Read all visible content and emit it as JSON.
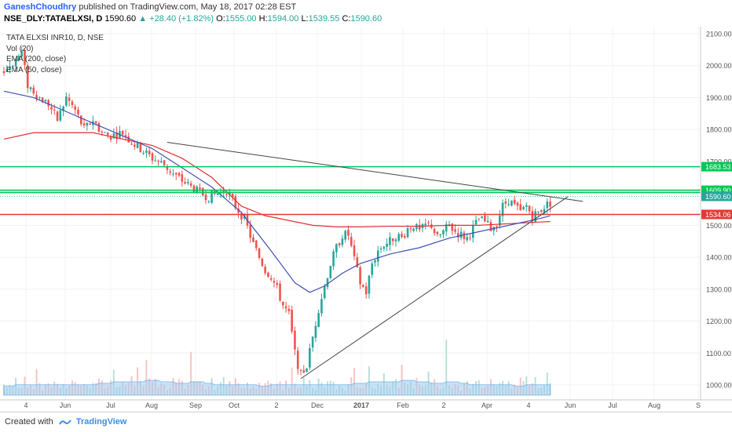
{
  "header": {
    "author": "GaneshChoudhry",
    "published_text": " published on TradingView.com, May 18, 2017 02:28 EST",
    "symbol": "NSE_DLY:TATAELXSI, D",
    "last": "1590.60",
    "change": "+28.40 (+1.82%)",
    "o_label": "O:",
    "o": "1555.00",
    "h_label": "H:",
    "h": "1594.00",
    "l_label": "L:",
    "l": "1539.55",
    "c_label": "C:",
    "c": "1590.60"
  },
  "legend": {
    "title": "TATA ELXSI INR10, D, NSE",
    "vol": "Vol (20)",
    "ema200": "EMA (200, close)",
    "ema50": "EMA (50, close)"
  },
  "footer": {
    "created_with": "Created with",
    "brand": "TradingView"
  },
  "colors": {
    "up": "#26a69a",
    "down": "#ef5350",
    "ema200": "#e03030",
    "ema50": "#3f51b5",
    "green_level": "#00c853",
    "red_level": "#e53935",
    "trend": "#444444",
    "vol_up": "#b9e0da",
    "vol_down": "#f6c6c4",
    "vol_ma": "#9ecbef"
  },
  "chart_data": {
    "type": "candlestick",
    "ylim": [
      980,
      2120
    ],
    "y_ticks": [
      "1000.00",
      "1100.00",
      "1200.00",
      "1300.00",
      "1400.00",
      "1500.00",
      "1600.00",
      "1700.00",
      "1800.00",
      "1900.00",
      "2000.00",
      "2100.00"
    ],
    "x_ticks": [
      "4",
      "Jun",
      "Jul",
      "Aug",
      "Sep",
      "Oct",
      "2",
      "Dec",
      "2017",
      "Feb",
      "2",
      "Apr",
      "4",
      "Jun",
      "Jul",
      "Aug",
      "S"
    ],
    "price_labels": [
      {
        "text": "1683.53",
        "value": 1683.53,
        "color": "#00c853"
      },
      {
        "text": "1609.90",
        "value": 1609.9,
        "color": "#00c853"
      },
      {
        "text": "1590.60",
        "value": 1590.6,
        "color": "#26a69a"
      },
      {
        "text": "1534.06",
        "value": 1534.06,
        "color": "#e53935"
      }
    ],
    "levels": [
      {
        "value": 1683.53,
        "color": "#00c853"
      },
      {
        "value": 1609.9,
        "color": "#00c853"
      },
      {
        "value": 1603,
        "color": "#00c853"
      },
      {
        "value": 1534.06,
        "color": "#e53935"
      }
    ],
    "price_path": [
      [
        0,
        1980
      ],
      [
        3,
        2010
      ],
      [
        6,
        2040
      ],
      [
        8,
        1940
      ],
      [
        12,
        1900
      ],
      [
        15,
        1880
      ],
      [
        18,
        1830
      ],
      [
        21,
        1900
      ],
      [
        24,
        1860
      ],
      [
        27,
        1800
      ],
      [
        30,
        1830
      ],
      [
        33,
        1790
      ],
      [
        36,
        1780
      ],
      [
        40,
        1790
      ],
      [
        43,
        1760
      ],
      [
        46,
        1740
      ],
      [
        50,
        1710
      ],
      [
        54,
        1690
      ],
      [
        57,
        1660
      ],
      [
        60,
        1640
      ],
      [
        63,
        1620
      ],
      [
        66,
        1600
      ],
      [
        69,
        1590
      ],
      [
        72,
        1600
      ],
      [
        75,
        1610
      ],
      [
        78,
        1560
      ],
      [
        81,
        1520
      ],
      [
        84,
        1440
      ],
      [
        86,
        1400
      ],
      [
        88,
        1360
      ],
      [
        90,
        1340
      ],
      [
        92,
        1300
      ],
      [
        94,
        1250
      ],
      [
        96,
        1220
      ],
      [
        98,
        1100
      ],
      [
        100,
        1030
      ],
      [
        102,
        1060
      ],
      [
        104,
        1150
      ],
      [
        106,
        1240
      ],
      [
        108,
        1310
      ],
      [
        110,
        1380
      ],
      [
        112,
        1430
      ],
      [
        114,
        1470
      ],
      [
        116,
        1470
      ],
      [
        118,
        1390
      ],
      [
        120,
        1320
      ],
      [
        122,
        1290
      ],
      [
        124,
        1380
      ],
      [
        126,
        1420
      ],
      [
        128,
        1440
      ],
      [
        130,
        1450
      ],
      [
        132,
        1470
      ],
      [
        134,
        1460
      ],
      [
        136,
        1490
      ],
      [
        138,
        1500
      ],
      [
        140,
        1480
      ],
      [
        142,
        1500
      ],
      [
        144,
        1500
      ],
      [
        146,
        1460
      ],
      [
        148,
        1480
      ],
      [
        150,
        1500
      ],
      [
        152,
        1480
      ],
      [
        154,
        1470
      ],
      [
        156,
        1460
      ],
      [
        158,
        1490
      ],
      [
        160,
        1520
      ],
      [
        162,
        1510
      ],
      [
        164,
        1490
      ],
      [
        166,
        1510
      ],
      [
        168,
        1560
      ],
      [
        170,
        1580
      ],
      [
        172,
        1560
      ],
      [
        174,
        1540
      ],
      [
        176,
        1560
      ],
      [
        178,
        1530
      ],
      [
        180,
        1540
      ],
      [
        182,
        1560
      ],
      [
        184,
        1570
      ]
    ],
    "ema50_path": [
      [
        0,
        1920
      ],
      [
        10,
        1900
      ],
      [
        20,
        1860
      ],
      [
        30,
        1820
      ],
      [
        40,
        1780
      ],
      [
        50,
        1740
      ],
      [
        60,
        1680
      ],
      [
        70,
        1620
      ],
      [
        80,
        1540
      ],
      [
        90,
        1420
      ],
      [
        98,
        1320
      ],
      [
        103,
        1290
      ],
      [
        108,
        1310
      ],
      [
        114,
        1350
      ],
      [
        120,
        1380
      ],
      [
        130,
        1410
      ],
      [
        140,
        1430
      ],
      [
        150,
        1460
      ],
      [
        160,
        1480
      ],
      [
        170,
        1500
      ],
      [
        180,
        1520
      ],
      [
        184,
        1530
      ]
    ],
    "ema200_path": [
      [
        0,
        1770
      ],
      [
        10,
        1790
      ],
      [
        20,
        1790
      ],
      [
        30,
        1790
      ],
      [
        40,
        1770
      ],
      [
        50,
        1750
      ],
      [
        60,
        1710
      ],
      [
        70,
        1650
      ],
      [
        80,
        1560
      ],
      [
        88,
        1530
      ],
      [
        96,
        1515
      ],
      [
        104,
        1500
      ],
      [
        112,
        1495
      ],
      [
        120,
        1495
      ],
      [
        130,
        1497
      ],
      [
        140,
        1497
      ],
      [
        150,
        1500
      ],
      [
        160,
        1500
      ],
      [
        170,
        1505
      ],
      [
        180,
        1510
      ],
      [
        184,
        1512
      ]
    ],
    "trendlines": [
      {
        "from": [
          55,
          1760
        ],
        "to": [
          195,
          1575
        ]
      },
      {
        "from": [
          100,
          1020
        ],
        "to": [
          190,
          1590
        ]
      }
    ],
    "volume": [
      3,
      2,
      4,
      3,
      5,
      2,
      3,
      4,
      2,
      3,
      2,
      6,
      3,
      2,
      3,
      4,
      2,
      5,
      3,
      2,
      4,
      3,
      2,
      3,
      5,
      3,
      2,
      4,
      3,
      2,
      3,
      4,
      6,
      3,
      2,
      3,
      4,
      8,
      3,
      2,
      4,
      3,
      5,
      4,
      3,
      6,
      4,
      3,
      9,
      5,
      3,
      4,
      3,
      4,
      3,
      2,
      3,
      5,
      3,
      4,
      3,
      2,
      3,
      12,
      4,
      3,
      4,
      3,
      2,
      3,
      4,
      2,
      3,
      3,
      4,
      2,
      3,
      2,
      4,
      3,
      2,
      3,
      4,
      2,
      3,
      2
    ],
    "vol_ma": [
      3,
      3,
      3,
      3,
      3.5,
      3.5,
      3.5,
      3.5,
      3.5,
      3.5,
      3.5,
      3.5,
      3.5,
      3.5,
      3.5,
      3.5,
      3.5,
      3.5,
      3.5,
      3.5,
      3.5,
      3.5,
      3.5,
      3.5,
      3.5,
      3.5,
      3.5,
      3.5,
      3.5,
      3.5,
      3.5,
      3.5,
      4,
      4,
      4,
      4,
      4,
      4.5,
      4.5,
      4.5,
      4.5,
      4.5,
      4.5,
      4.5,
      4.5,
      4.5,
      4.5,
      4.5,
      5,
      5,
      5,
      5,
      5,
      4.5,
      4.5,
      4.5,
      4.5,
      4.5,
      4,
      4,
      4,
      4,
      4,
      4.5,
      4.5,
      4.5,
      4.5,
      4.5,
      4,
      4,
      4,
      3.5,
      3.5,
      3.5,
      3.5,
      3.5,
      3.5,
      3.5,
      3.5,
      3.5,
      3.5,
      3.5,
      3.5,
      3.5,
      3.5,
      3.5
    ]
  }
}
